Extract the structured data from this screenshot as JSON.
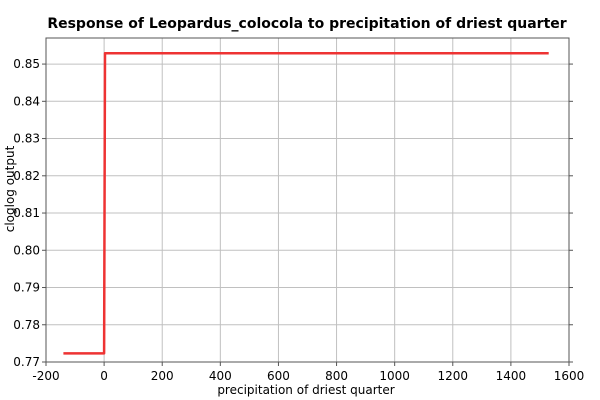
{
  "chart_data": {
    "type": "line",
    "title": "Response of Leopardus_colocola to precipitation of driest quarter",
    "xlabel": "precipitation of driest quarter",
    "ylabel": "cloglog output",
    "xlim": [
      -200,
      1600
    ],
    "ylim": [
      0.77,
      0.857
    ],
    "x_ticks": [
      -200,
      0,
      200,
      400,
      600,
      800,
      1000,
      1200,
      1400,
      1600
    ],
    "y_ticks": [
      0.77,
      0.78,
      0.79,
      0.8,
      0.81,
      0.82,
      0.83,
      0.84,
      0.85
    ],
    "x_tick_labels": [
      "-200",
      "0",
      "200",
      "400",
      "600",
      "800",
      "1000",
      "1200",
      "1400",
      "1600"
    ],
    "y_tick_labels": [
      "0.77",
      "0.78",
      "0.79",
      "0.80",
      "0.81",
      "0.82",
      "0.83",
      "0.84",
      "0.85"
    ],
    "grid": true,
    "series": [
      {
        "color": "#ee3333",
        "x": [
          -140,
          0,
          3,
          1530
        ],
        "y": [
          0.7723,
          0.7723,
          0.8529,
          0.8529
        ]
      }
    ]
  }
}
